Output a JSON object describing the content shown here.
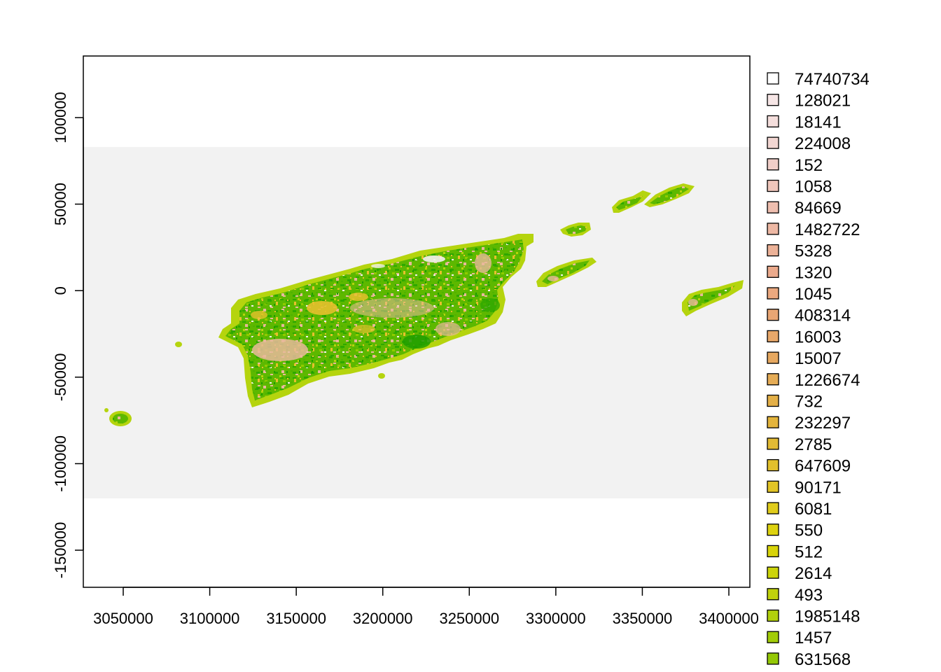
{
  "map": {
    "x_ticks": [
      "3050000",
      "3100000",
      "3150000",
      "3200000",
      "3250000",
      "3300000",
      "3350000",
      "3400000"
    ],
    "y_ticks": [
      "-150000",
      "-100000",
      "-50000",
      "0",
      "50000",
      "100000"
    ],
    "background_color": "#f2f2f2",
    "land_colors": {
      "coast": "#b5d40e",
      "coast_dark": "#8fcc00",
      "forest": "#5db800",
      "forest_dark": "#2ea800",
      "pink": "#e8b89a",
      "yellow": "#e6c02c",
      "white_patch": "#f5f0ee"
    }
  },
  "legend": {
    "items": [
      {
        "label": "74740734",
        "color": "#ffffff"
      },
      {
        "label": "128021",
        "color": "#f6e6e6"
      },
      {
        "label": "18141",
        "color": "#f4dedc"
      },
      {
        "label": "224008",
        "color": "#f2d6d2"
      },
      {
        "label": "152",
        "color": "#f0cec8"
      },
      {
        "label": "1058",
        "color": "#efc6bb"
      },
      {
        "label": "84669",
        "color": "#eebeaf"
      },
      {
        "label": "1482722",
        "color": "#edb8a4"
      },
      {
        "label": "5328",
        "color": "#ecb298"
      },
      {
        "label": "1320",
        "color": "#ebaa8c"
      },
      {
        "label": "1045",
        "color": "#eaa87f"
      },
      {
        "label": "408314",
        "color": "#e9a674"
      },
      {
        "label": "16003",
        "color": "#e8a86a"
      },
      {
        "label": "15007",
        "color": "#e6a860"
      },
      {
        "label": "1226674",
        "color": "#e5ac56"
      },
      {
        "label": "732",
        "color": "#e4b048"
      },
      {
        "label": "232297",
        "color": "#e3b43c"
      },
      {
        "label": "2785",
        "color": "#e2ba34"
      },
      {
        "label": "647609",
        "color": "#e2c02c"
      },
      {
        "label": "90171",
        "color": "#e2c426"
      },
      {
        "label": "6081",
        "color": "#e0cc1c"
      },
      {
        "label": "550",
        "color": "#ddd210"
      },
      {
        "label": "512",
        "color": "#d8d40a"
      },
      {
        "label": "2614",
        "color": "#ccd40a"
      },
      {
        "label": "493",
        "color": "#c0d20c"
      },
      {
        "label": "1985148",
        "color": "#b2d00c"
      },
      {
        "label": "1457",
        "color": "#a2cc08"
      },
      {
        "label": "631568",
        "color": "#94c806"
      }
    ]
  }
}
